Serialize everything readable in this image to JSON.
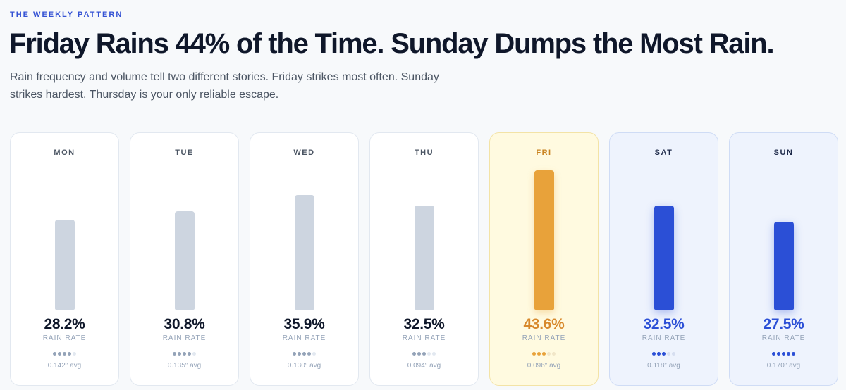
{
  "chart_data": {
    "type": "bar",
    "eyebrow": "THE WEEKLY PATTERN",
    "title": "Friday Rains 44% of the Time. Sunday Dumps the Most Rain.",
    "subtitle": "Rain frequency and volume tell two different stories. Friday strikes most often. Sunday strikes hardest. Thursday is your only reliable escape.",
    "categories": [
      "MON",
      "TUE",
      "WED",
      "THU",
      "FRI",
      "SAT",
      "SUN"
    ],
    "values": [
      28.2,
      30.8,
      35.9,
      32.5,
      43.6,
      32.5,
      27.5
    ],
    "value_labels": [
      "28.2%",
      "30.8%",
      "35.9%",
      "32.5%",
      "43.6%",
      "32.5%",
      "27.5%"
    ],
    "colors": [
      "#cdd5e0",
      "#cdd5e0",
      "#cdd5e0",
      "#cdd5e0",
      "#e8a23a",
      "#2b4fd6",
      "#2b4fd6"
    ],
    "value_caption": "RAIN RATE",
    "intensity": [
      4,
      4,
      4,
      3,
      3,
      3,
      5
    ],
    "avg_labels": [
      "0.142″ avg",
      "0.135″ avg",
      "0.130″ avg",
      "0.094″ avg",
      "0.096″ avg",
      "0.118″ avg",
      "0.170″ avg"
    ]
  }
}
